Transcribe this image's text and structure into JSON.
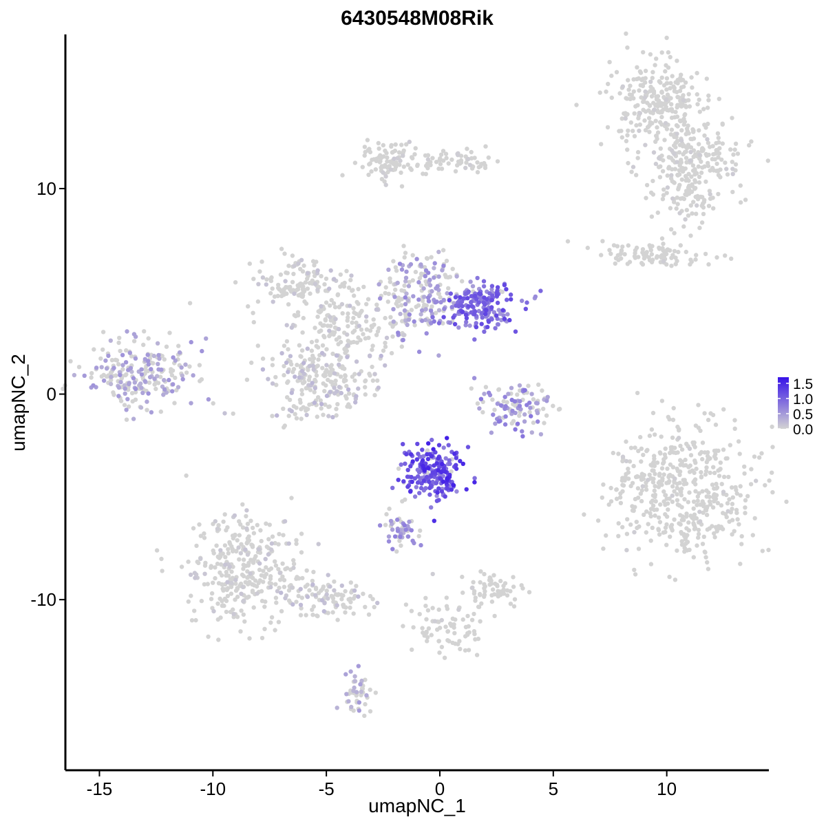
{
  "chart_data": {
    "type": "scatter",
    "title": "6430548M08Rik",
    "xlabel": "umapNC_1",
    "ylabel": "umapNC_2",
    "xlim": [
      -16.5,
      14.5
    ],
    "ylim": [
      -18.3,
      17.5
    ],
    "xticks": [
      -15,
      -10,
      -5,
      0,
      5,
      10
    ],
    "xtick_labels": [
      "-15",
      "-10",
      "-5",
      "0",
      "5",
      "10"
    ],
    "yticks": [
      -10,
      0,
      10
    ],
    "ytick_labels": [
      "-10",
      "0",
      "10"
    ],
    "grid": false,
    "colors": {
      "low": "#d3d3d3",
      "high": "#3712e8"
    },
    "legend": {
      "position": "right",
      "range": [
        0,
        1.7
      ],
      "ticks": [
        0.0,
        0.5,
        1.0,
        1.5
      ],
      "tick_labels": [
        "0.0",
        "0.5",
        "1.0",
        "1.5"
      ]
    },
    "clusters": [
      {
        "id": "top-right-upper",
        "center": [
          9.6,
          14.2
        ],
        "spread": [
          1.1,
          1.0
        ],
        "n": 260,
        "expression": 0.03
      },
      {
        "id": "top-right-arm",
        "center": [
          11.2,
          11.6
        ],
        "spread": [
          1.1,
          0.6
        ],
        "n": 160,
        "expression": 0.05
      },
      {
        "id": "top-right-tail",
        "center": [
          10.9,
          9.7
        ],
        "spread": [
          0.9,
          0.9
        ],
        "n": 110,
        "expression": 0.05
      },
      {
        "id": "top-left-tail",
        "center": [
          -2.3,
          11.4
        ],
        "spread": [
          0.6,
          0.5
        ],
        "n": 80,
        "expression": 0.06
      },
      {
        "id": "top-bridge",
        "center": [
          0.6,
          11.3
        ],
        "spread": [
          1.4,
          0.3
        ],
        "n": 70,
        "expression": 0.04
      },
      {
        "id": "right-ribbon",
        "center": [
          9.7,
          6.8
        ],
        "spread": [
          1.2,
          0.3
        ],
        "n": 90,
        "expression": 0.02
      },
      {
        "id": "central-left-arm",
        "center": [
          -6.3,
          5.4
        ],
        "spread": [
          1.0,
          0.6
        ],
        "n": 110,
        "expression": 0.12
      },
      {
        "id": "central-body",
        "center": [
          -4.0,
          3.5
        ],
        "spread": [
          1.5,
          1.0
        ],
        "n": 200,
        "expression": 0.12
      },
      {
        "id": "central-lower-lobe",
        "center": [
          -5.4,
          0.6
        ],
        "spread": [
          1.2,
          0.9
        ],
        "n": 230,
        "expression": 0.18
      },
      {
        "id": "upper-middle-lobe",
        "center": [
          -0.6,
          5.0
        ],
        "spread": [
          0.9,
          1.0
        ],
        "n": 170,
        "expression": 0.45
      },
      {
        "id": "upper-right-lobe",
        "center": [
          1.8,
          4.3
        ],
        "spread": [
          0.8,
          0.6
        ],
        "n": 190,
        "expression": 0.85
      },
      {
        "id": "left-island",
        "center": [
          -13.3,
          1.0
        ],
        "spread": [
          1.2,
          0.8
        ],
        "n": 230,
        "expression": 0.38
      },
      {
        "id": "small-right-cluster",
        "center": [
          3.2,
          -0.6
        ],
        "spread": [
          0.8,
          0.6
        ],
        "n": 110,
        "expression": 0.55
      },
      {
        "id": "large-right-cluster",
        "center": [
          10.7,
          -4.8
        ],
        "spread": [
          1.6,
          1.6
        ],
        "n": 480,
        "expression": 0.01
      },
      {
        "id": "lower-center-blob",
        "center": [
          -0.3,
          -3.8
        ],
        "spread": [
          0.7,
          0.7
        ],
        "n": 210,
        "expression": 1.05
      },
      {
        "id": "lower-center-stem",
        "center": [
          -1.7,
          -6.5
        ],
        "spread": [
          0.5,
          0.5
        ],
        "n": 50,
        "expression": 0.5
      },
      {
        "id": "bottom-left-cluster",
        "center": [
          -8.6,
          -8.6
        ],
        "spread": [
          1.3,
          1.3
        ],
        "n": 330,
        "expression": 0.1
      },
      {
        "id": "bottom-left-stream",
        "center": [
          -5.0,
          -10.0
        ],
        "spread": [
          1.0,
          0.5
        ],
        "n": 100,
        "expression": 0.15
      },
      {
        "id": "bottom-left-tail",
        "center": [
          -3.6,
          -14.4
        ],
        "spread": [
          0.3,
          0.5
        ],
        "n": 45,
        "expression": 0.35
      },
      {
        "id": "bottom-center-stream",
        "center": [
          0.2,
          -11.4
        ],
        "spread": [
          0.9,
          0.7
        ],
        "n": 80,
        "expression": 0.02
      },
      {
        "id": "bottom-right-small",
        "center": [
          2.4,
          -9.4
        ],
        "spread": [
          0.6,
          0.4
        ],
        "n": 60,
        "expression": 0.03
      }
    ]
  }
}
